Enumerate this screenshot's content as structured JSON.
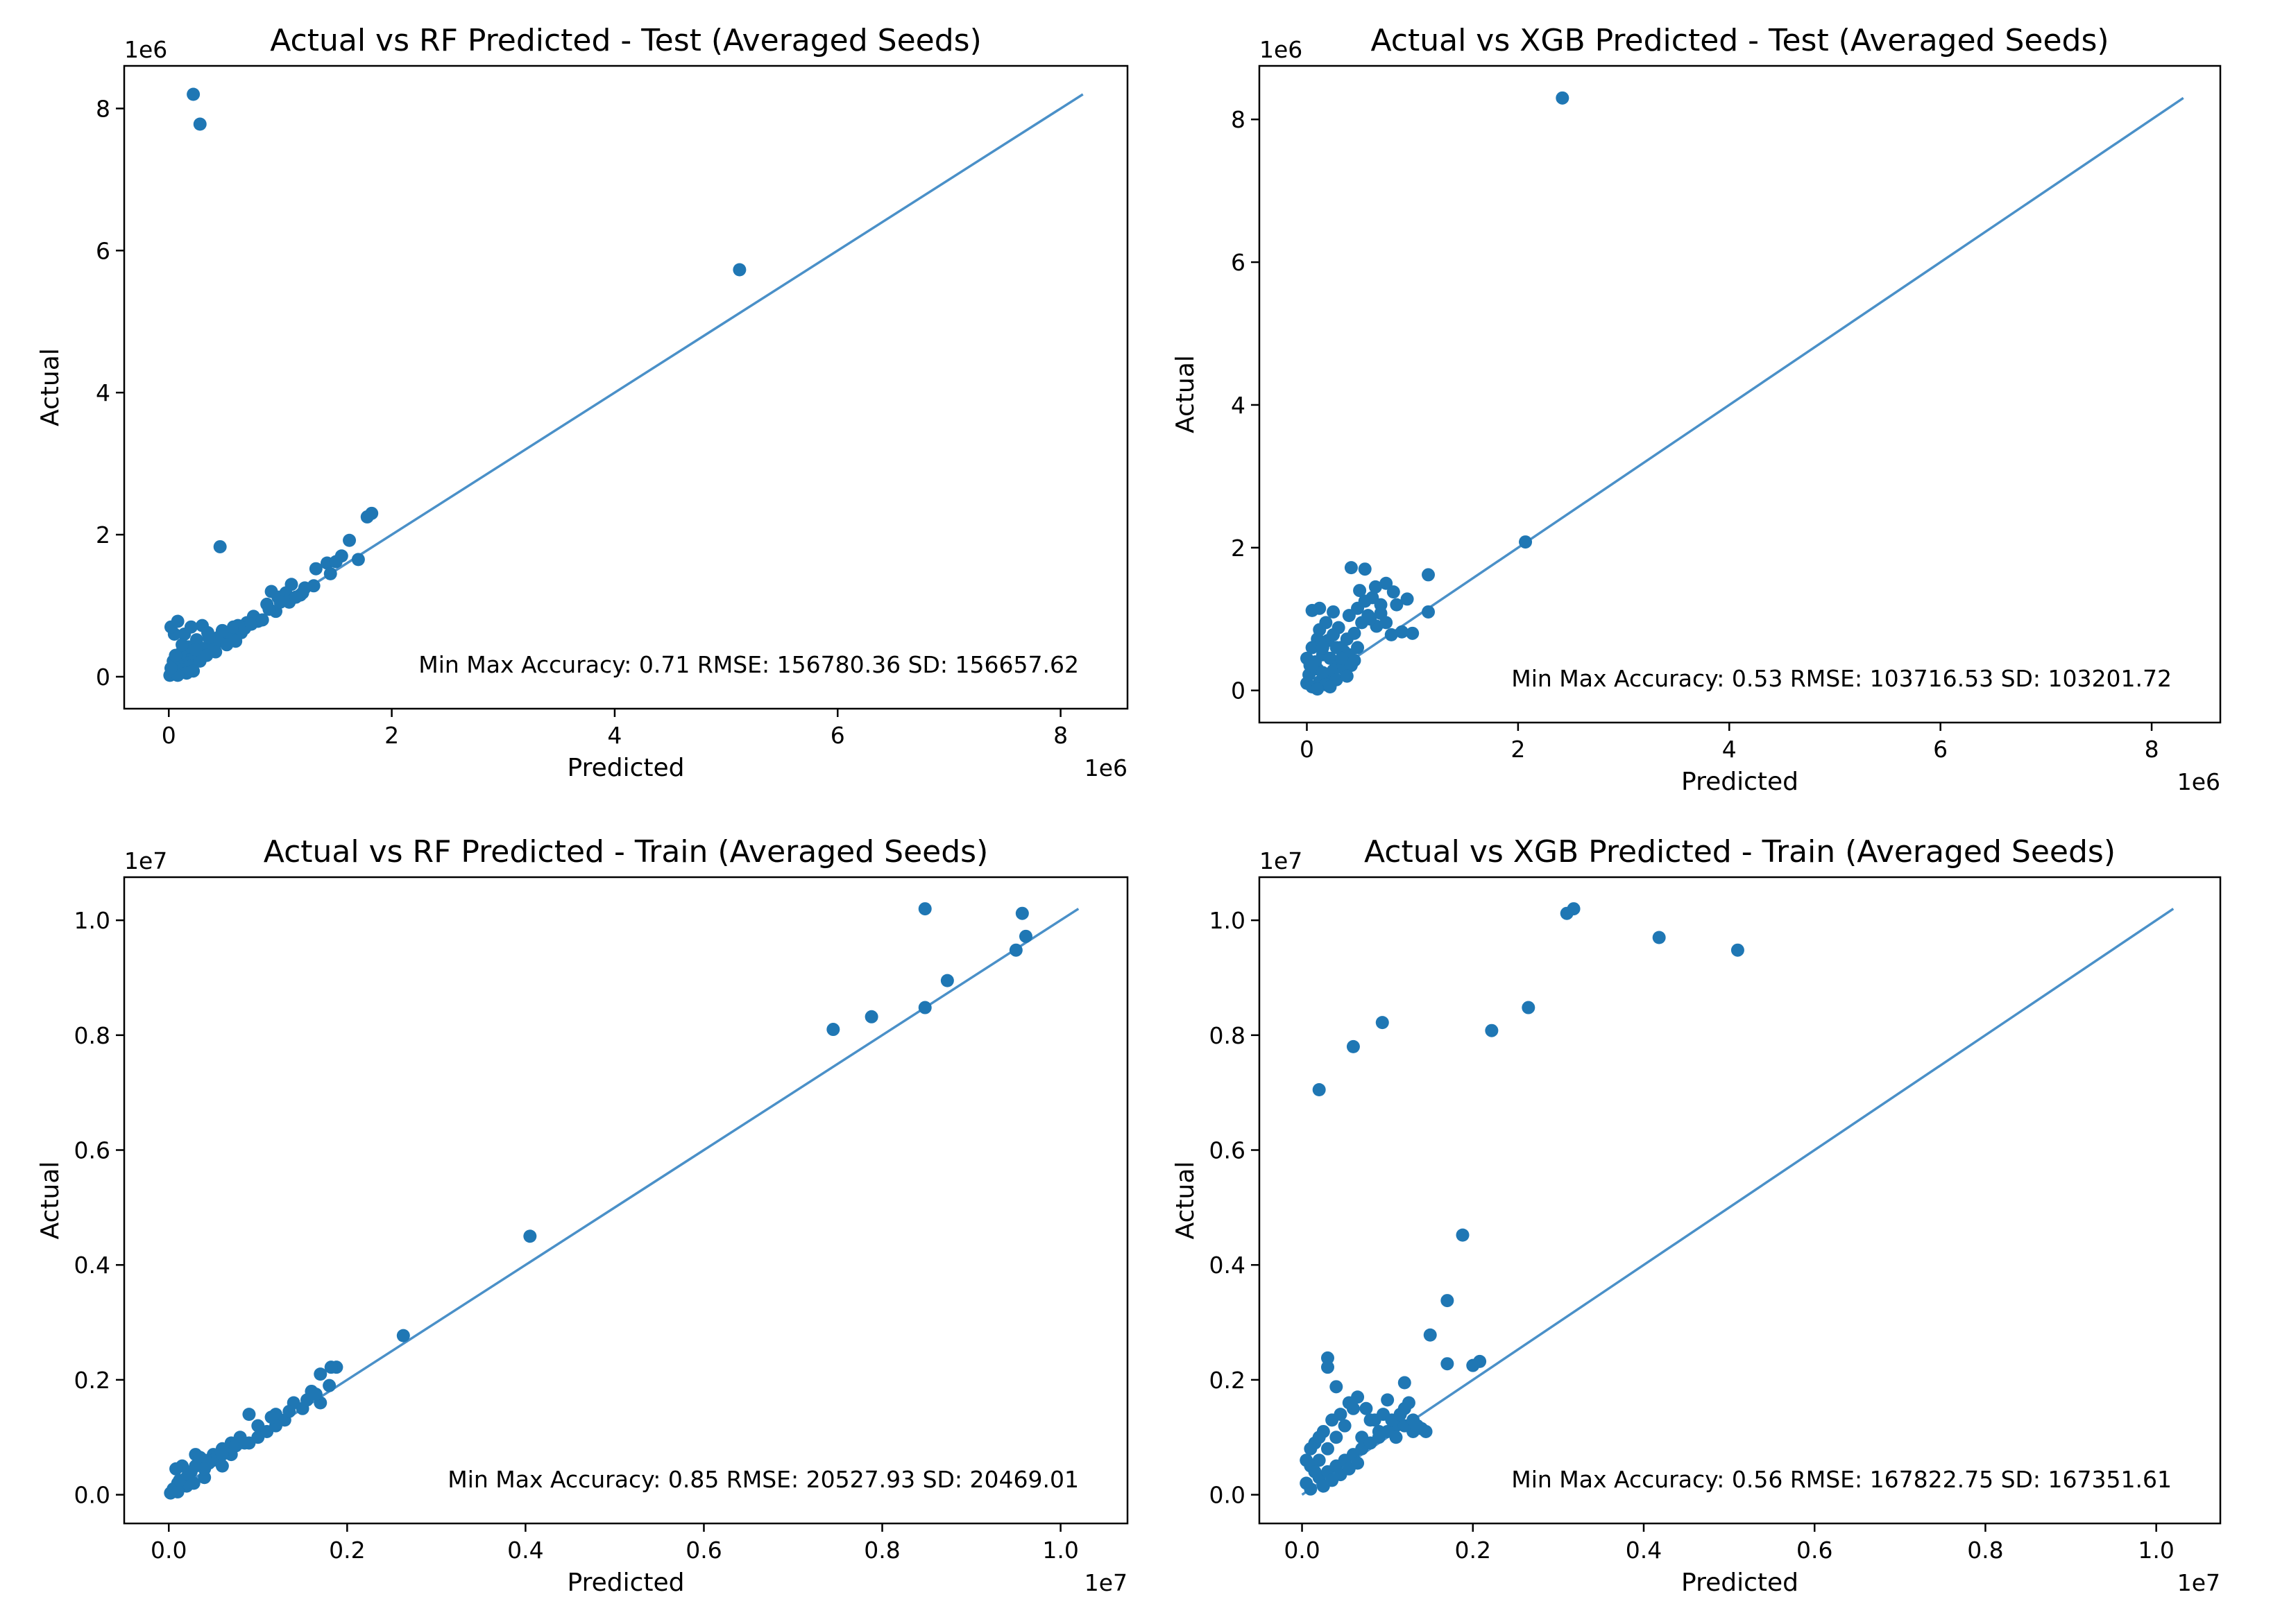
{
  "figure": {
    "background": "#ffffff"
  },
  "style": {
    "point_color": "#1f77b4",
    "line_color": "#4a90c8",
    "axes_color": "#000000"
  },
  "chart_data": [
    {
      "type": "scatter",
      "title": "Actual vs RF Predicted - Test (Averaged Seeds)",
      "xlabel": "Predicted",
      "ylabel": "Actual",
      "xlim": [
        -0.4,
        8.6
      ],
      "ylim": [
        -0.45,
        8.6
      ],
      "xticks": [
        0,
        2,
        4,
        6,
        8
      ],
      "yticks": [
        0,
        2,
        4,
        6,
        8
      ],
      "xtick_labels": [
        "0",
        "2",
        "4",
        "6",
        "8"
      ],
      "ytick_labels": [
        "0",
        "2",
        "4",
        "6",
        "8"
      ],
      "x_offset_label": "1e6",
      "y_offset_label": "1e6",
      "annotation": "Min Max Accuracy: 0.71  RMSE: 156780.36  SD: 156657.62",
      "line": {
        "x": [
          0,
          8.2
        ],
        "y": [
          0,
          8.2
        ]
      },
      "points": [
        [
          0.22,
          8.2
        ],
        [
          0.28,
          7.78
        ],
        [
          5.12,
          5.73
        ],
        [
          0.46,
          1.83
        ],
        [
          1.82,
          2.3
        ],
        [
          1.78,
          2.25
        ],
        [
          1.62,
          1.92
        ],
        [
          1.55,
          1.7
        ],
        [
          1.42,
          1.6
        ],
        [
          1.32,
          1.52
        ],
        [
          1.1,
          1.3
        ],
        [
          1.22,
          1.25
        ],
        [
          1.05,
          1.18
        ],
        [
          0.98,
          1.12
        ],
        [
          0.88,
          1.02
        ],
        [
          0.92,
          1.2
        ],
        [
          1.18,
          1.15
        ],
        [
          0.76,
          0.85
        ],
        [
          0.7,
          0.76
        ],
        [
          0.62,
          0.72
        ],
        [
          0.56,
          0.64
        ],
        [
          0.5,
          0.6
        ],
        [
          0.44,
          0.55
        ],
        [
          0.38,
          0.48
        ],
        [
          0.32,
          0.4
        ],
        [
          0.26,
          0.33
        ],
        [
          0.2,
          0.27
        ],
        [
          0.15,
          0.2
        ],
        [
          0.1,
          0.14
        ],
        [
          0.06,
          0.1
        ],
        [
          0.03,
          0.05
        ],
        [
          0.01,
          0.02
        ],
        [
          0.05,
          0.6
        ],
        [
          0.02,
          0.7
        ],
        [
          0.08,
          0.78
        ],
        [
          0.14,
          0.6
        ],
        [
          0.2,
          0.7
        ],
        [
          0.3,
          0.72
        ],
        [
          0.35,
          0.62
        ],
        [
          0.25,
          0.52
        ],
        [
          0.18,
          0.42
        ],
        [
          0.1,
          0.32
        ],
        [
          0.04,
          0.22
        ],
        [
          0.12,
          0.1
        ],
        [
          0.2,
          0.15
        ],
        [
          0.3,
          0.28
        ],
        [
          0.4,
          0.42
        ],
        [
          0.46,
          0.5
        ],
        [
          0.55,
          0.58
        ],
        [
          0.65,
          0.62
        ],
        [
          0.8,
          0.78
        ],
        [
          0.96,
          0.92
        ],
        [
          1.08,
          1.05
        ],
        [
          1.2,
          1.18
        ],
        [
          1.3,
          1.28
        ],
        [
          1.45,
          1.45
        ],
        [
          1.5,
          1.62
        ],
        [
          1.7,
          1.65
        ],
        [
          0.6,
          0.5
        ],
        [
          0.52,
          0.45
        ],
        [
          0.42,
          0.35
        ],
        [
          0.34,
          0.3
        ],
        [
          0.28,
          0.22
        ],
        [
          0.22,
          0.08
        ],
        [
          0.16,
          0.05
        ],
        [
          0.08,
          0.02
        ],
        [
          0.02,
          0.12
        ],
        [
          0.06,
          0.3
        ],
        [
          0.12,
          0.45
        ],
        [
          0.24,
          0.38
        ],
        [
          0.36,
          0.55
        ],
        [
          0.48,
          0.65
        ],
        [
          0.58,
          0.7
        ],
        [
          0.68,
          0.68
        ],
        [
          0.74,
          0.74
        ],
        [
          0.84,
          0.8
        ],
        [
          0.9,
          0.95
        ],
        [
          1.0,
          1.05
        ],
        [
          1.14,
          1.12
        ]
      ]
    },
    {
      "type": "scatter",
      "title": "Actual vs XGB Predicted - Test (Averaged Seeds)",
      "xlabel": "Predicted",
      "ylabel": "Actual",
      "xlim": [
        -0.45,
        8.65
      ],
      "ylim": [
        -0.45,
        8.75
      ],
      "xticks": [
        0,
        2,
        4,
        6,
        8
      ],
      "yticks": [
        0,
        2,
        4,
        6,
        8
      ],
      "xtick_labels": [
        "0",
        "2",
        "4",
        "6",
        "8"
      ],
      "ytick_labels": [
        "0",
        "2",
        "4",
        "6",
        "8"
      ],
      "x_offset_label": "1e6",
      "y_offset_label": "1e6",
      "annotation": "Min Max Accuracy: 0.53  RMSE: 103716.53  SD: 103201.72",
      "line": {
        "x": [
          0,
          8.3
        ],
        "y": [
          0,
          8.3
        ]
      },
      "points": [
        [
          2.42,
          8.3
        ],
        [
          2.07,
          2.08
        ],
        [
          1.15,
          1.62
        ],
        [
          0.42,
          1.72
        ],
        [
          0.55,
          1.7
        ],
        [
          0.5,
          1.4
        ],
        [
          0.62,
          1.3
        ],
        [
          0.75,
          1.5
        ],
        [
          0.82,
          1.38
        ],
        [
          0.7,
          1.2
        ],
        [
          0.58,
          1.05
        ],
        [
          0.9,
          0.82
        ],
        [
          1.0,
          0.8
        ],
        [
          1.15,
          1.1
        ],
        [
          0.8,
          0.78
        ],
        [
          0.66,
          0.9
        ],
        [
          0.05,
          1.12
        ],
        [
          0.12,
          1.15
        ],
        [
          0.25,
          1.1
        ],
        [
          0.18,
          0.95
        ],
        [
          0.3,
          0.88
        ],
        [
          0.1,
          0.72
        ],
        [
          0.2,
          0.7
        ],
        [
          0.28,
          0.6
        ],
        [
          0.35,
          0.55
        ],
        [
          0.4,
          0.5
        ],
        [
          0.45,
          0.42
        ],
        [
          0.15,
          0.5
        ],
        [
          0.05,
          0.6
        ],
        [
          0.22,
          0.45
        ],
        [
          0.3,
          0.35
        ],
        [
          0.1,
          0.3
        ],
        [
          0.02,
          0.22
        ],
        [
          0.0,
          0.1
        ],
        [
          0.05,
          0.05
        ],
        [
          0.12,
          0.12
        ],
        [
          0.2,
          0.2
        ],
        [
          0.25,
          0.28
        ],
        [
          0.35,
          0.3
        ],
        [
          0.42,
          0.35
        ],
        [
          0.08,
          0.4
        ],
        [
          0.15,
          0.25
        ],
        [
          0.03,
          0.35
        ],
        [
          0.0,
          0.45
        ],
        [
          0.18,
          0.08
        ],
        [
          0.28,
          0.15
        ],
        [
          0.38,
          0.2
        ],
        [
          0.1,
          0.02
        ],
        [
          0.22,
          0.05
        ],
        [
          0.32,
          0.6
        ],
        [
          0.38,
          0.72
        ],
        [
          0.45,
          0.8
        ],
        [
          0.52,
          0.95
        ],
        [
          0.6,
          1.0
        ],
        [
          0.7,
          1.08
        ],
        [
          0.75,
          0.95
        ],
        [
          0.85,
          1.2
        ],
        [
          0.95,
          1.28
        ],
        [
          0.48,
          1.15
        ],
        [
          0.55,
          1.25
        ],
        [
          0.65,
          1.45
        ],
        [
          0.4,
          1.05
        ],
        [
          0.25,
          0.78
        ],
        [
          0.12,
          0.85
        ],
        [
          0.05,
          0.35
        ],
        [
          0.15,
          0.6
        ],
        [
          0.33,
          0.45
        ],
        [
          0.48,
          0.6
        ]
      ]
    },
    {
      "type": "scatter",
      "title": "Actual vs RF Predicted - Train (Averaged Seeds)",
      "xlabel": "Predicted",
      "ylabel": "Actual",
      "xlim": [
        -0.05,
        1.075
      ],
      "ylim": [
        -0.05,
        1.075
      ],
      "xticks": [
        0.0,
        0.2,
        0.4,
        0.6,
        0.8,
        1.0
      ],
      "yticks": [
        0.0,
        0.2,
        0.4,
        0.6,
        0.8,
        1.0
      ],
      "xtick_labels": [
        "0.0",
        "0.2",
        "0.4",
        "0.6",
        "0.8",
        "1.0"
      ],
      "ytick_labels": [
        "0.0",
        "0.2",
        "0.4",
        "0.6",
        "0.8",
        "1.0"
      ],
      "x_offset_label": "1e7",
      "y_offset_label": "1e7",
      "annotation": "Min Max Accuracy: 0.85  RMSE: 20527.93  SD: 20469.01",
      "line": {
        "x": [
          0,
          1.02
        ],
        "y": [
          0,
          1.02
        ]
      },
      "points": [
        [
          0.848,
          1.02
        ],
        [
          0.957,
          1.012
        ],
        [
          0.961,
          0.972
        ],
        [
          0.95,
          0.948
        ],
        [
          0.873,
          0.895
        ],
        [
          0.848,
          0.848
        ],
        [
          0.788,
          0.832
        ],
        [
          0.745,
          0.81
        ],
        [
          0.405,
          0.45
        ],
        [
          0.263,
          0.277
        ],
        [
          0.188,
          0.222
        ],
        [
          0.182,
          0.222
        ],
        [
          0.17,
          0.21
        ],
        [
          0.18,
          0.19
        ],
        [
          0.16,
          0.18
        ],
        [
          0.14,
          0.16
        ],
        [
          0.12,
          0.14
        ],
        [
          0.1,
          0.12
        ],
        [
          0.09,
          0.14
        ],
        [
          0.08,
          0.1
        ],
        [
          0.07,
          0.09
        ],
        [
          0.06,
          0.08
        ],
        [
          0.05,
          0.07
        ],
        [
          0.04,
          0.06
        ],
        [
          0.03,
          0.05
        ],
        [
          0.025,
          0.04
        ],
        [
          0.02,
          0.03
        ],
        [
          0.01,
          0.02
        ],
        [
          0.005,
          0.01
        ],
        [
          0.002,
          0.003
        ],
        [
          0.015,
          0.05
        ],
        [
          0.03,
          0.07
        ],
        [
          0.05,
          0.06
        ],
        [
          0.07,
          0.07
        ],
        [
          0.09,
          0.09
        ],
        [
          0.11,
          0.11
        ],
        [
          0.13,
          0.13
        ],
        [
          0.15,
          0.15
        ],
        [
          0.17,
          0.16
        ],
        [
          0.12,
          0.12
        ],
        [
          0.06,
          0.05
        ],
        [
          0.04,
          0.03
        ],
        [
          0.02,
          0.015
        ],
        [
          0.01,
          0.005
        ],
        [
          0.035,
          0.065
        ],
        [
          0.045,
          0.055
        ],
        [
          0.1,
          0.1
        ],
        [
          0.115,
          0.135
        ],
        [
          0.135,
          0.145
        ],
        [
          0.155,
          0.165
        ],
        [
          0.165,
          0.175
        ],
        [
          0.085,
          0.09
        ],
        [
          0.075,
          0.085
        ],
        [
          0.055,
          0.065
        ],
        [
          0.008,
          0.045
        ],
        [
          0.012,
          0.025
        ],
        [
          0.022,
          0.035
        ],
        [
          0.028,
          0.02
        ],
        [
          0.04,
          0.045
        ],
        [
          0.06,
          0.07
        ]
      ]
    },
    {
      "type": "scatter",
      "title": "Actual vs XGB Predicted - Train (Averaged Seeds)",
      "xlabel": "Predicted",
      "ylabel": "Actual",
      "xlim": [
        -0.05,
        1.075
      ],
      "ylim": [
        -0.05,
        1.075
      ],
      "xticks": [
        0.0,
        0.2,
        0.4,
        0.6,
        0.8,
        1.0
      ],
      "yticks": [
        0.0,
        0.2,
        0.4,
        0.6,
        0.8,
        1.0
      ],
      "xtick_labels": [
        "0.0",
        "0.2",
        "0.4",
        "0.6",
        "0.8",
        "1.0"
      ],
      "ytick_labels": [
        "0.0",
        "0.2",
        "0.4",
        "0.6",
        "0.8",
        "1.0"
      ],
      "x_offset_label": "1e7",
      "y_offset_label": "1e7",
      "annotation": "Min Max Accuracy: 0.56  RMSE: 167822.75  SD: 167351.61",
      "line": {
        "x": [
          0,
          1.02
        ],
        "y": [
          0,
          1.02
        ]
      },
      "points": [
        [
          0.318,
          1.02
        ],
        [
          0.31,
          1.012
        ],
        [
          0.418,
          0.97
        ],
        [
          0.51,
          0.948
        ],
        [
          0.265,
          0.848
        ],
        [
          0.222,
          0.808
        ],
        [
          0.094,
          0.822
        ],
        [
          0.06,
          0.78
        ],
        [
          0.02,
          0.705
        ],
        [
          0.188,
          0.452
        ],
        [
          0.17,
          0.338
        ],
        [
          0.15,
          0.278
        ],
        [
          0.17,
          0.228
        ],
        [
          0.208,
          0.232
        ],
        [
          0.2,
          0.225
        ],
        [
          0.03,
          0.238
        ],
        [
          0.03,
          0.222
        ],
        [
          0.04,
          0.188
        ],
        [
          0.12,
          0.195
        ],
        [
          0.1,
          0.165
        ],
        [
          0.12,
          0.15
        ],
        [
          0.06,
          0.15
        ],
        [
          0.08,
          0.13
        ],
        [
          0.09,
          0.11
        ],
        [
          0.11,
          0.12
        ],
        [
          0.13,
          0.11
        ],
        [
          0.07,
          0.1
        ],
        [
          0.05,
          0.12
        ],
        [
          0.04,
          0.1
        ],
        [
          0.03,
          0.08
        ],
        [
          0.02,
          0.06
        ],
        [
          0.01,
          0.05
        ],
        [
          0.005,
          0.02
        ],
        [
          0.01,
          0.01
        ],
        [
          0.02,
          0.03
        ],
        [
          0.03,
          0.04
        ],
        [
          0.04,
          0.05
        ],
        [
          0.05,
          0.06
        ],
        [
          0.06,
          0.07
        ],
        [
          0.07,
          0.08
        ],
        [
          0.08,
          0.09
        ],
        [
          0.09,
          0.1
        ],
        [
          0.1,
          0.11
        ],
        [
          0.11,
          0.1
        ],
        [
          0.12,
          0.12
        ],
        [
          0.13,
          0.13
        ],
        [
          0.14,
          0.115
        ],
        [
          0.015,
          0.09
        ],
        [
          0.025,
          0.11
        ],
        [
          0.035,
          0.13
        ],
        [
          0.045,
          0.14
        ],
        [
          0.055,
          0.16
        ],
        [
          0.065,
          0.17
        ],
        [
          0.075,
          0.15
        ],
        [
          0.085,
          0.13
        ],
        [
          0.095,
          0.14
        ],
        [
          0.105,
          0.13
        ],
        [
          0.115,
          0.14
        ],
        [
          0.125,
          0.16
        ],
        [
          0.135,
          0.12
        ],
        [
          0.145,
          0.11
        ],
        [
          0.005,
          0.06
        ],
        [
          0.01,
          0.08
        ],
        [
          0.02,
          0.1
        ],
        [
          0.015,
          0.04
        ],
        [
          0.025,
          0.015
        ],
        [
          0.035,
          0.025
        ],
        [
          0.045,
          0.035
        ],
        [
          0.055,
          0.045
        ],
        [
          0.065,
          0.055
        ]
      ]
    }
  ]
}
